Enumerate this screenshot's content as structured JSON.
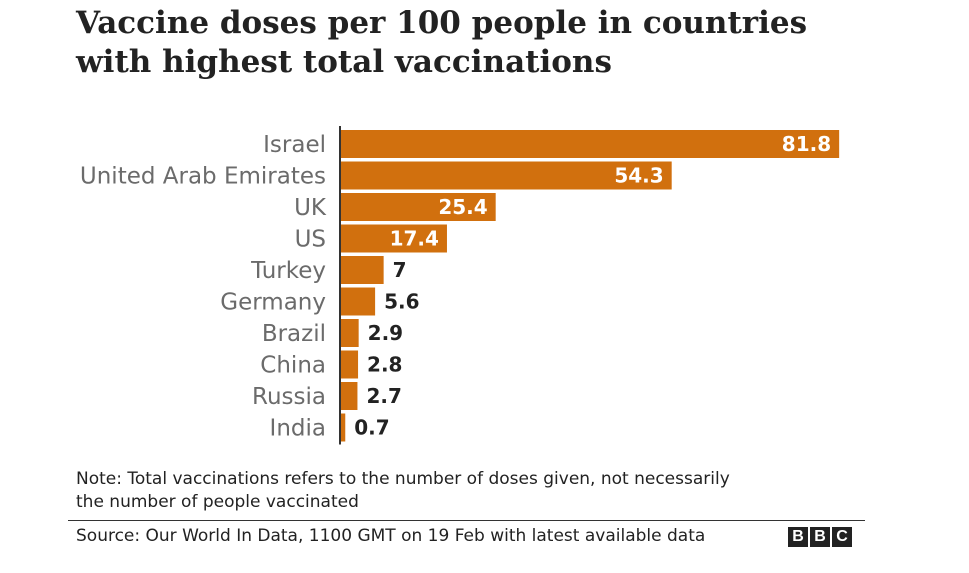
{
  "chart_data": {
    "type": "bar",
    "orientation": "horizontal",
    "title": "Vaccine doses per 100 people in countries with highest total vaccinations",
    "title_lines": [
      "Vaccine doses per 100 people in countries",
      "with highest total vaccinations"
    ],
    "categories": [
      "Israel",
      "United Arab Emirates",
      "UK",
      "US",
      "Turkey",
      "Germany",
      "Brazil",
      "China",
      "Russia",
      "India"
    ],
    "values": [
      81.8,
      54.3,
      25.4,
      17.4,
      7,
      5.6,
      2.9,
      2.8,
      2.7,
      0.7
    ],
    "value_labels": [
      "81.8",
      "54.3",
      "25.4",
      "17.4",
      "7",
      "5.6",
      "2.9",
      "2.8",
      "2.7",
      "0.7"
    ],
    "xlabel": "",
    "ylabel": "",
    "xlim": [
      0,
      100
    ],
    "grid": false,
    "bar_color": "#d1700e",
    "inside_label_color": "#ffffff",
    "outside_label_color": "#222222"
  },
  "note": {
    "lines": [
      "Note: Total vaccinations refers to the number of doses given, not necessarily",
      "the number of people vaccinated"
    ]
  },
  "source": {
    "text": "Source: Our World In Data, 1100 GMT on 19 Feb with latest available data"
  },
  "logo": {
    "letters": [
      "B",
      "B",
      "C"
    ],
    "name": "BBC"
  }
}
